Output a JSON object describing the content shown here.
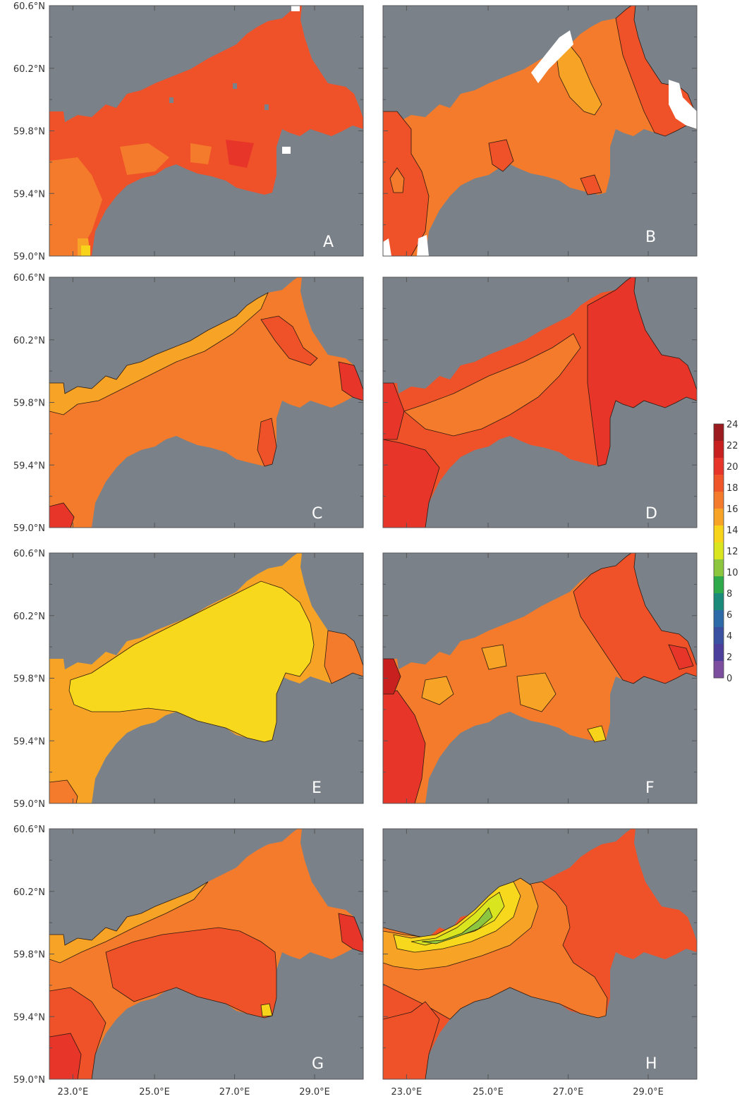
{
  "lat_labels": [
    "60.6°N",
    "60.2°N",
    "59.8°N",
    "59.4°N",
    "59.0°N"
  ],
  "lon_labels": [
    "23.0°E",
    "25.0°E",
    "27.0°E",
    "29.0°E"
  ],
  "colorbar": {
    "ticks": [
      "24",
      "22",
      "20",
      "18",
      "16",
      "14",
      "12",
      "10",
      "8",
      "6",
      "4",
      "2",
      "0"
    ],
    "colors": [
      "#9b1b1e",
      "#c8201f",
      "#e8352a",
      "#f0552a",
      "#f47b2b",
      "#f6a326",
      "#f7d41a",
      "#d9e51f",
      "#8cc63f",
      "#2faa4a",
      "#1a8a7a",
      "#2d6aa8",
      "#3a50a0",
      "#4b3f9b",
      "#7d4ea0"
    ]
  },
  "panels": [
    {
      "label": "A"
    },
    {
      "label": "B"
    },
    {
      "label": "C"
    },
    {
      "label": "D"
    },
    {
      "label": "E"
    },
    {
      "label": "F"
    },
    {
      "label": "G"
    },
    {
      "label": "H"
    }
  ],
  "colors": {
    "land": "#7a8189",
    "frame": "#555555",
    "contour": "#2a1a10",
    "missing": "#ffffff"
  }
}
